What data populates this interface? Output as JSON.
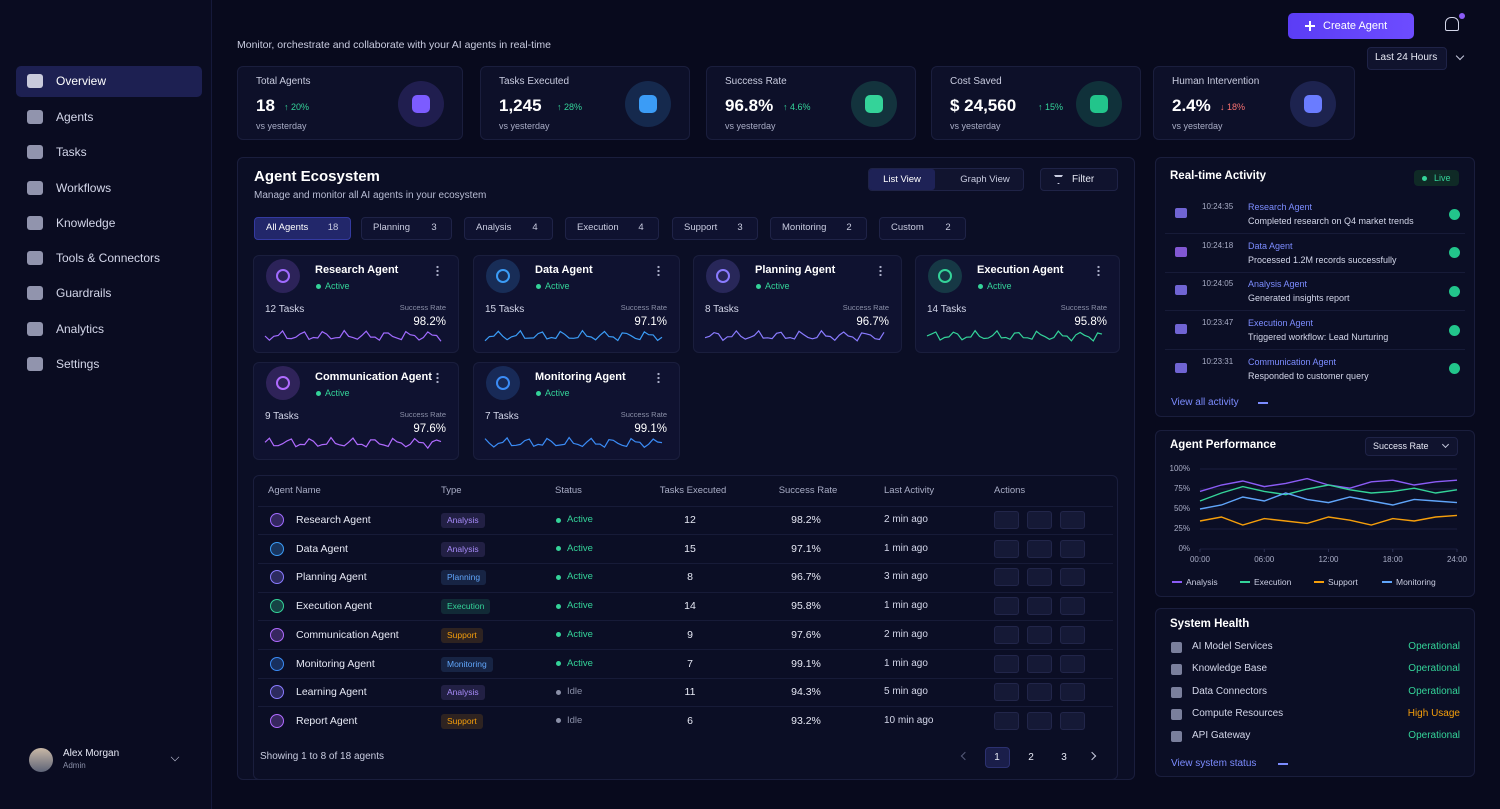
{
  "header": {
    "subtitle": "Monitor, orchestrate and collaborate with your AI agents in real-time",
    "create_button": "Create Agent",
    "time_range": "Last 24 Hours"
  },
  "sidebar": {
    "nav": [
      "Overview",
      "Agents",
      "Tasks",
      "Workflows",
      "Knowledge",
      "Tools & Connectors",
      "Guardrails",
      "Analytics",
      "Settings"
    ],
    "user": {
      "name": "Alex Morgan",
      "role": "Admin"
    }
  },
  "stats": [
    {
      "label": "Total Agents",
      "value": "18",
      "change": "↑ 20%",
      "change_color": "#34d399",
      "note": "vs yesterday",
      "icon_color": "#7c5cff"
    },
    {
      "label": "Tasks Executed",
      "value": "1,245",
      "change": "↑ 28%",
      "change_color": "#34d399",
      "note": "vs yesterday",
      "icon_color": "#3b9cf6"
    },
    {
      "label": "Success Rate",
      "value": "96.8%",
      "change": "↑ 4.6%",
      "change_color": "#34d399",
      "note": "vs yesterday",
      "icon_color": "#34d399"
    },
    {
      "label": "Cost Saved",
      "value": "$ 24,560",
      "change": "↑ 15%",
      "change_color": "#34d399",
      "note": "vs yesterday",
      "icon_color": "#22c58b"
    },
    {
      "label": "Human Intervention",
      "value": "2.4%",
      "change": "↓ 18%",
      "change_color": "#f87171",
      "note": "vs yesterday",
      "icon_color": "#6a7cff"
    }
  ],
  "ecosystem": {
    "title": "Agent Ecosystem",
    "subtitle": "Manage and monitor all AI agents in your ecosystem",
    "views": [
      "List View",
      "Graph View"
    ],
    "filter": "Filter",
    "tabs": [
      {
        "name": "All Agents",
        "count": 18
      },
      {
        "name": "Planning",
        "count": 3
      },
      {
        "name": "Analysis",
        "count": 4
      },
      {
        "name": "Execution",
        "count": 4
      },
      {
        "name": "Support",
        "count": 3
      },
      {
        "name": "Monitoring",
        "count": 2
      },
      {
        "name": "Custom",
        "count": 2
      }
    ],
    "rate_label": "Success Rate",
    "cards": [
      {
        "name": "Research Agent",
        "status": "Active",
        "tasks": "12 Tasks",
        "rate": "98.2%",
        "color": "#a06bff"
      },
      {
        "name": "Data Agent",
        "status": "Active",
        "tasks": "15 Tasks",
        "rate": "97.1%",
        "color": "#3b9cf6"
      },
      {
        "name": "Planning Agent",
        "status": "Active",
        "tasks": "8 Tasks",
        "rate": "96.7%",
        "color": "#8a7bff"
      },
      {
        "name": "Execution Agent",
        "status": "Active",
        "tasks": "14 Tasks",
        "rate": "95.8%",
        "color": "#34d399"
      },
      {
        "name": "Communication Agent",
        "status": "Active",
        "tasks": "9 Tasks",
        "rate": "97.6%",
        "color": "#b06bff"
      },
      {
        "name": "Monitoring Agent",
        "status": "Active",
        "tasks": "7 Tasks",
        "rate": "99.1%",
        "color": "#3b8cf6"
      }
    ]
  },
  "table": {
    "columns": [
      "Agent Name",
      "Type",
      "Status",
      "Tasks Executed",
      "Success Rate",
      "Last Activity",
      "Actions"
    ],
    "rows": [
      {
        "name": "Research Agent",
        "type": "Analysis",
        "status": "Active",
        "tasks": 12,
        "rate": "98.2%",
        "last": "2 min ago",
        "color": "#a06bff",
        "type_color": "#a78bfa",
        "status_color": "#34d399"
      },
      {
        "name": "Data Agent",
        "type": "Analysis",
        "status": "Active",
        "tasks": 15,
        "rate": "97.1%",
        "last": "1 min ago",
        "color": "#3b9cf6",
        "type_color": "#a78bfa",
        "status_color": "#34d399"
      },
      {
        "name": "Planning Agent",
        "type": "Planning",
        "status": "Active",
        "tasks": 8,
        "rate": "96.7%",
        "last": "3 min ago",
        "color": "#8a7bff",
        "type_color": "#60a5fa",
        "status_color": "#34d399"
      },
      {
        "name": "Execution Agent",
        "type": "Execution",
        "status": "Active",
        "tasks": 14,
        "rate": "95.8%",
        "last": "1 min ago",
        "color": "#34d399",
        "type_color": "#34d399",
        "status_color": "#34d399"
      },
      {
        "name": "Communication Agent",
        "type": "Support",
        "status": "Active",
        "tasks": 9,
        "rate": "97.6%",
        "last": "2 min ago",
        "color": "#b06bff",
        "type_color": "#f59e0b",
        "status_color": "#34d399"
      },
      {
        "name": "Monitoring Agent",
        "type": "Monitoring",
        "status": "Active",
        "tasks": 7,
        "rate": "99.1%",
        "last": "1 min ago",
        "color": "#3b8cf6",
        "type_color": "#60a5fa",
        "status_color": "#34d399"
      },
      {
        "name": "Learning Agent",
        "type": "Analysis",
        "status": "Idle",
        "tasks": 11,
        "rate": "94.3%",
        "last": "5 min ago",
        "color": "#8a7bff",
        "type_color": "#a78bfa",
        "status_color": "#8b90a8"
      },
      {
        "name": "Report Agent",
        "type": "Support",
        "status": "Idle",
        "tasks": 6,
        "rate": "93.2%",
        "last": "10 min ago",
        "color": "#b06bff",
        "type_color": "#f59e0b",
        "status_color": "#8b90a8"
      }
    ],
    "footer": "Showing 1 to 8 of 18 agents",
    "pages": [
      1,
      2,
      3
    ]
  },
  "activity": {
    "title": "Real-time Activity",
    "live": "Live",
    "items": [
      {
        "time": "10:24:35",
        "agent": "Research Agent",
        "text": "Completed research on Q4 market trends",
        "color": "#8a7bff"
      },
      {
        "time": "10:24:18",
        "agent": "Data Agent",
        "text": "Processed 1.2M records successfully",
        "color": "#a06bff"
      },
      {
        "time": "10:24:05",
        "agent": "Analysis Agent",
        "text": "Generated insights report",
        "color": "#8a7bff"
      },
      {
        "time": "10:23:47",
        "agent": "Execution Agent",
        "text": "Triggered workflow: Lead Nurturing",
        "color": "#8a7bff"
      },
      {
        "time": "10:23:31",
        "agent": "Communication Agent",
        "text": "Responded to customer query",
        "color": "#8a7bff"
      }
    ],
    "link": "View all activity"
  },
  "performance": {
    "type": "line",
    "title": "Agent Performance",
    "metric": "Success Rate",
    "x": [
      0,
      2,
      4,
      6,
      8,
      10,
      12,
      14,
      16,
      18,
      20,
      22,
      24
    ],
    "xlim": [
      0,
      24
    ],
    "xticks": [
      {
        "value": 0,
        "label": "00:00"
      },
      {
        "value": 6,
        "label": "06:00"
      },
      {
        "value": 12,
        "label": "12:00"
      },
      {
        "value": 18,
        "label": "18:00"
      },
      {
        "value": 24,
        "label": "24:00"
      }
    ],
    "ylim": [
      0,
      100
    ],
    "yticks": [
      {
        "value": 0,
        "label": "0%"
      },
      {
        "value": 25,
        "label": "25%"
      },
      {
        "value": 50,
        "label": "50%"
      },
      {
        "value": 75,
        "label": "75%"
      },
      {
        "value": 100,
        "label": "100%"
      }
    ],
    "grid": true,
    "series": [
      {
        "name": "Analysis",
        "color": "#8b5cf6",
        "values": [
          72,
          80,
          85,
          78,
          82,
          88,
          80,
          76,
          84,
          86,
          80,
          84,
          86
        ]
      },
      {
        "name": "Execution",
        "color": "#34d399",
        "values": [
          60,
          70,
          78,
          72,
          68,
          75,
          80,
          74,
          70,
          72,
          76,
          70,
          74
        ]
      },
      {
        "name": "Support",
        "color": "#f59e0b",
        "values": [
          35,
          40,
          30,
          38,
          35,
          32,
          40,
          36,
          30,
          38,
          35,
          40,
          42
        ]
      },
      {
        "name": "Monitoring",
        "color": "#60a5fa",
        "values": [
          50,
          55,
          65,
          60,
          70,
          62,
          58,
          65,
          60,
          55,
          62,
          60,
          58
        ]
      }
    ]
  },
  "health": {
    "title": "System Health",
    "items": [
      {
        "name": "AI Model Services",
        "status": "Operational",
        "color": "#34d399"
      },
      {
        "name": "Knowledge Base",
        "status": "Operational",
        "color": "#34d399"
      },
      {
        "name": "Data Connectors",
        "status": "Operational",
        "color": "#34d399"
      },
      {
        "name": "Compute Resources",
        "status": "High Usage",
        "color": "#f59e0b"
      },
      {
        "name": "API Gateway",
        "status": "Operational",
        "color": "#34d399"
      }
    ],
    "link": "View system status"
  }
}
